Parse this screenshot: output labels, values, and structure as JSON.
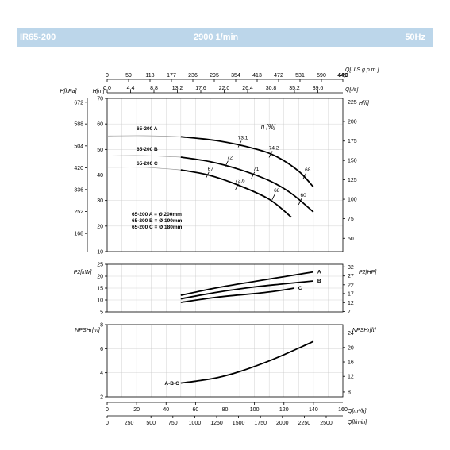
{
  "header": {
    "model": "IR65-200",
    "speed": "2900 1/min",
    "frequency": "50Hz"
  },
  "colors": {
    "header_bg": "#bcd6ea",
    "header_text": "#ffffff",
    "curve": "#000000",
    "grid": "#c8c8c8"
  },
  "labels": {
    "q_usgpm": "Q[U.S.g.p.m.]",
    "q_ls": "Q[l/s]",
    "h_kpa": "H[kPa]",
    "h_m": "H[m]",
    "h_ft": "H[ft]",
    "eta": "η [%]",
    "p2_kw": "P2[kW]",
    "p2_hp": "P2[HP]",
    "npshr_m": "NPSHr[m]",
    "npshr_ft": "NPSHr[ft]",
    "q_m3h": "Q[m³/h]",
    "q_lmin": "Q[l/min]",
    "impeller_a": "65-200 A",
    "impeller_b": "65-200 B",
    "impeller_c": "65-200 C",
    "legend_a": "65-200 A = Ø 200mm",
    "legend_b": "65-200 B = Ø 190mm",
    "legend_c": "65-200 C = Ø 180mm",
    "npsh_curve": "A-B-C",
    "power_a": "A",
    "power_b": "B",
    "power_c": "C"
  },
  "chart_data": [
    {
      "type": "line",
      "title": "",
      "xlabel": "Q[m³/h]",
      "ylabel": "H[m]",
      "xlim": [
        0,
        160
      ],
      "ylim": [
        10,
        70
      ],
      "grid": true,
      "top_axes": {
        "usgpm_ticks": [
          "0",
          "59",
          "118",
          "177",
          "236",
          "295",
          "354",
          "413",
          "472",
          "531",
          "590",
          "649"
        ],
        "usgpm_suffix": "44,0",
        "ls_ticks": [
          "0,0",
          "4,4",
          "8,8",
          "13,2",
          "17,6",
          "22,0",
          "26,4",
          "30,8",
          "35,2",
          "39,6"
        ]
      },
      "left_axes": {
        "h_m_ticks": [
          10,
          20,
          30,
          40,
          50,
          60,
          70
        ],
        "h_kpa_ticks": [
          {
            "label": "672",
            "h_m": 68.5
          },
          {
            "label": "588",
            "h_m": 60.0
          },
          {
            "label": "504",
            "h_m": 51.4
          },
          {
            "label": "420",
            "h_m": 42.8
          },
          {
            "label": "336",
            "h_m": 34.3
          },
          {
            "label": "252",
            "h_m": 25.7
          },
          {
            "label": "168",
            "h_m": 17.1
          }
        ]
      },
      "right_axis_ft": [
        {
          "label": "225",
          "h_m": 68.6
        },
        {
          "label": "200",
          "h_m": 61.0
        },
        {
          "label": "175",
          "h_m": 53.3
        },
        {
          "label": "150",
          "h_m": 45.7
        },
        {
          "label": "125",
          "h_m": 38.1
        },
        {
          "label": "100",
          "h_m": 30.5
        },
        {
          "label": "75",
          "h_m": 22.9
        },
        {
          "label": "50",
          "h_m": 15.2
        }
      ],
      "series": [
        {
          "name": "65-200 A",
          "x": [
            0,
            25,
            50,
            75,
            100,
            115,
            130,
            140
          ],
          "y": [
            55.3,
            55.4,
            55.0,
            53.4,
            50.3,
            47.2,
            41.5,
            35.3
          ],
          "dashed_until_x": 50
        },
        {
          "name": "65-200 B",
          "x": [
            0,
            25,
            50,
            70,
            90,
            110,
            125,
            140
          ],
          "y": [
            47.5,
            47.6,
            47.0,
            45.2,
            42.1,
            37.8,
            32.8,
            25.5
          ],
          "dashed_until_x": 50
        },
        {
          "name": "65-200 C",
          "x": [
            0,
            25,
            50,
            70,
            90,
            110,
            125
          ],
          "y": [
            43.0,
            43.0,
            42.0,
            39.8,
            35.8,
            30.5,
            23.5
          ],
          "dashed_until_x": 50
        }
      ],
      "efficiency_marks": [
        {
          "label": "72",
          "x": 81,
          "y": 44.3
        },
        {
          "label": "73,1",
          "x": 90,
          "y": 52.1
        },
        {
          "label": "74,2",
          "x": 111,
          "y": 48.1
        },
        {
          "label": "68",
          "x": 134,
          "y": 39.6
        },
        {
          "label": "67",
          "x": 68,
          "y": 39.9
        },
        {
          "label": "71",
          "x": 99,
          "y": 39.9
        },
        {
          "label": "60",
          "x": 131,
          "y": 29.6
        },
        {
          "label": "72,6",
          "x": 88,
          "y": 35.3
        },
        {
          "label": "68",
          "x": 113,
          "y": 31.5
        }
      ]
    },
    {
      "type": "line",
      "title": "",
      "xlabel": "Q[m³/h]",
      "ylabel": "P2[kW]",
      "xlim": [
        0,
        160
      ],
      "ylim": [
        5,
        25
      ],
      "grid": true,
      "y_ticks": [
        5,
        10,
        15,
        20,
        25
      ],
      "right_axis_hp": [
        {
          "label": "32",
          "kw": 23.9
        },
        {
          "label": "27",
          "kw": 20.1
        },
        {
          "label": "22",
          "kw": 16.4
        },
        {
          "label": "17",
          "kw": 12.7
        },
        {
          "label": "12",
          "kw": 8.9
        },
        {
          "label": "7",
          "kw": 5.2
        }
      ],
      "series": [
        {
          "name": "A",
          "x": [
            50,
            75,
            100,
            120,
            140
          ],
          "y": [
            12.0,
            15.2,
            17.8,
            19.8,
            21.8
          ]
        },
        {
          "name": "B",
          "x": [
            50,
            75,
            100,
            120,
            140
          ],
          "y": [
            10.5,
            13.3,
            15.5,
            16.8,
            18.0
          ]
        },
        {
          "name": "C",
          "x": [
            50,
            75,
            100,
            115,
            127
          ],
          "y": [
            9.0,
            11.2,
            12.7,
            13.8,
            15.0
          ]
        }
      ]
    },
    {
      "type": "line",
      "title": "",
      "xlabel": "Q[m³/h]",
      "ylabel": "NPSHr[m]",
      "xlim": [
        0,
        160
      ],
      "ylim": [
        2,
        8
      ],
      "grid": true,
      "y_ticks": [
        2,
        4,
        6,
        8
      ],
      "right_axis_ft": [
        {
          "label": "24",
          "m": 7.3
        },
        {
          "label": "20",
          "m": 6.1
        },
        {
          "label": "16",
          "m": 4.9
        },
        {
          "label": "12",
          "m": 3.7
        },
        {
          "label": "8",
          "m": 2.4
        }
      ],
      "series": [
        {
          "name": "A-B-C",
          "x": [
            50,
            60,
            75,
            90,
            105,
            120,
            140
          ],
          "y": [
            3.15,
            3.3,
            3.6,
            4.1,
            4.75,
            5.5,
            6.6
          ]
        }
      ],
      "bottom_axes": {
        "m3h_ticks": [
          0,
          20,
          40,
          60,
          80,
          100,
          120,
          140
        ],
        "m3h_suffix": "160",
        "lmin_ticks": [
          "0",
          "250",
          "500",
          "750",
          "1000",
          "1250",
          "1500",
          "1750",
          "2000",
          "2250",
          "2500"
        ]
      }
    }
  ]
}
